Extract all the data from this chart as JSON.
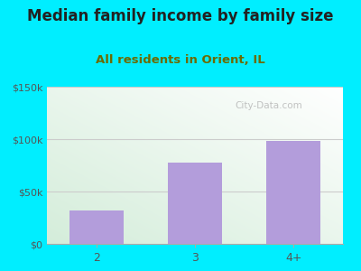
{
  "title": "Median family income by family size",
  "subtitle": "All residents in Orient, IL",
  "categories": [
    "2",
    "3",
    "4+"
  ],
  "values": [
    32000,
    78000,
    98000
  ],
  "bar_color": "#b39ddb",
  "figure_bg": "#00eeff",
  "plot_bg_top_left": "#d4edda",
  "plot_bg_top_right": "#ffffff",
  "ylim": [
    0,
    150000
  ],
  "yticks": [
    0,
    50000,
    100000,
    150000
  ],
  "ytick_labels": [
    "$0",
    "$50k",
    "$100k",
    "$150k"
  ],
  "title_fontsize": 12,
  "subtitle_fontsize": 9.5,
  "subtitle_color": "#6b6b00",
  "title_color": "#222222",
  "watermark": "City-Data.com",
  "watermark_color": "#aaaaaa",
  "tick_color": "#555555",
  "grid_color": "#cccccc"
}
